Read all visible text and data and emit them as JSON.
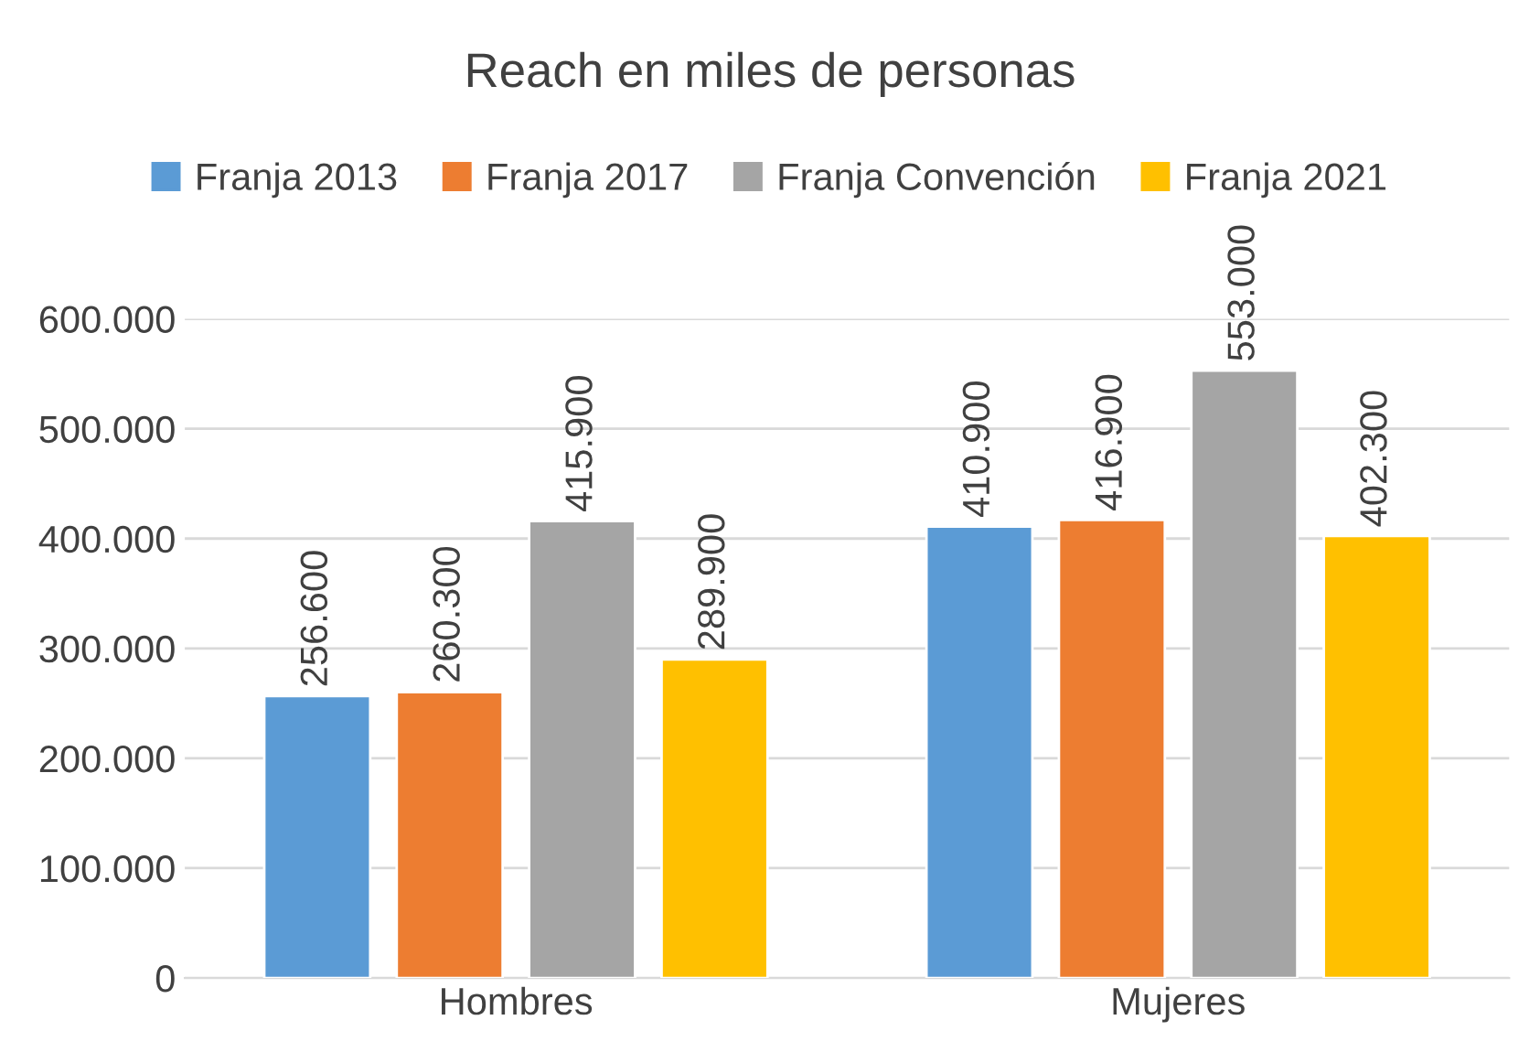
{
  "chart_data": {
    "type": "bar",
    "title": "Reach en miles de personas",
    "categories": [
      "Hombres",
      "Mujeres"
    ],
    "series": [
      {
        "name": "Franja 2013",
        "color": "#5b9bd5",
        "values": [
          256600,
          410900
        ],
        "value_labels": [
          "256.600",
          "410.900"
        ]
      },
      {
        "name": "Franja 2017",
        "color": "#ed7d31",
        "values": [
          260300,
          416900
        ],
        "value_labels": [
          "260.300",
          "416.900"
        ]
      },
      {
        "name": "Franja Convención",
        "color": "#a5a5a5",
        "values": [
          415900,
          553000
        ],
        "value_labels": [
          "415.900",
          "553.000"
        ]
      },
      {
        "name": "Franja 2021",
        "color": "#ffc000",
        "values": [
          289900,
          402300
        ],
        "value_labels": [
          "289.900",
          "402.300"
        ]
      }
    ],
    "ylim": [
      0,
      600000
    ],
    "yticks": [
      0,
      {
        "value": 100000,
        "label": "100.000"
      },
      {
        "value": 200000,
        "label": "200.000"
      },
      {
        "value": 300000,
        "label": "300.000"
      },
      {
        "value": 400000,
        "label": "400.000"
      },
      {
        "value": 500000,
        "label": "500.000"
      },
      {
        "value": 600000,
        "label": "600.000"
      }
    ],
    "grid": "y",
    "legend": "top"
  }
}
